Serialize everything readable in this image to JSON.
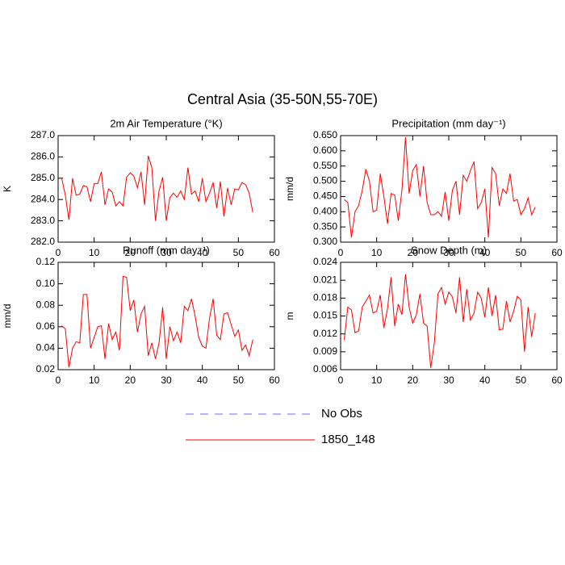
{
  "title": "Central Asia (35-50N,55-70E)",
  "reference": {
    "name": "No Obs",
    "color": "#6a6aff",
    "style": "dashed"
  },
  "chart_data": [
    {
      "type": "line",
      "title": "2m Air Temperature (°K)",
      "ylabel": "K",
      "x": [
        1,
        2,
        3,
        4,
        5,
        6,
        7,
        8,
        9,
        10,
        11,
        12,
        13,
        14,
        15,
        16,
        17,
        18,
        19,
        20,
        21,
        22,
        23,
        24,
        25,
        26,
        27,
        28,
        29,
        30,
        31,
        32,
        33,
        34,
        35,
        36,
        37,
        38,
        39,
        40,
        41,
        42,
        43,
        44,
        45,
        46,
        47,
        48,
        49,
        50,
        51,
        52,
        53,
        54
      ],
      "series": [
        {
          "name": "1850_148",
          "color": "#ff0000",
          "values": [
            285.0,
            284.2,
            283.05,
            285.0,
            284.2,
            284.25,
            284.65,
            284.6,
            283.9,
            284.75,
            284.75,
            285.3,
            283.75,
            284.5,
            284.35,
            283.7,
            283.9,
            283.7,
            285.05,
            285.25,
            285.1,
            284.55,
            285.3,
            283.75,
            286.05,
            285.5,
            283.0,
            284.4,
            285.05,
            283.0,
            284.1,
            284.3,
            284.1,
            284.4,
            284.0,
            285.5,
            284.25,
            284.4,
            283.9,
            285.0,
            283.9,
            284.3,
            284.8,
            283.6,
            284.85,
            283.2,
            284.55,
            283.75,
            284.5,
            284.45,
            284.8,
            284.7,
            284.3,
            283.4
          ]
        }
      ],
      "xlim": [
        0,
        60
      ],
      "xticks": [
        0,
        10,
        20,
        30,
        40,
        50,
        60
      ],
      "ylim": [
        282,
        287
      ],
      "yticks": [
        {
          "value": 282,
          "label": "282.0"
        },
        {
          "value": 283,
          "label": "283.0"
        },
        {
          "value": 284,
          "label": "284.0"
        },
        {
          "value": 285,
          "label": "285.0"
        },
        {
          "value": 286,
          "label": "286.0"
        },
        {
          "value": 287,
          "label": "287.0"
        }
      ]
    },
    {
      "type": "line",
      "title": "Precipitation (mm day⁻¹)",
      "ylabel": "mm/d",
      "x": [
        1,
        2,
        3,
        4,
        5,
        6,
        7,
        8,
        9,
        10,
        11,
        12,
        13,
        14,
        15,
        16,
        17,
        18,
        19,
        20,
        21,
        22,
        23,
        24,
        25,
        26,
        27,
        28,
        29,
        30,
        31,
        32,
        33,
        34,
        35,
        36,
        37,
        38,
        39,
        40,
        41,
        42,
        43,
        44,
        45,
        46,
        47,
        48,
        49,
        50,
        51,
        52,
        53,
        54
      ],
      "series": [
        {
          "name": "1850_148",
          "color": "#ff0000",
          "values": [
            0.44,
            0.43,
            0.315,
            0.4,
            0.42,
            0.47,
            0.54,
            0.5,
            0.4,
            0.405,
            0.525,
            0.45,
            0.36,
            0.46,
            0.455,
            0.37,
            0.47,
            0.645,
            0.46,
            0.535,
            0.555,
            0.45,
            0.55,
            0.43,
            0.39,
            0.39,
            0.4,
            0.385,
            0.465,
            0.37,
            0.47,
            0.5,
            0.39,
            0.52,
            0.5,
            0.535,
            0.565,
            0.41,
            0.43,
            0.475,
            0.315,
            0.545,
            0.525,
            0.42,
            0.475,
            0.46,
            0.525,
            0.435,
            0.44,
            0.39,
            0.41,
            0.445,
            0.39,
            0.415
          ]
        }
      ],
      "xlim": [
        0,
        60
      ],
      "xticks": [
        0,
        10,
        20,
        30,
        40,
        50,
        60
      ],
      "ylim": [
        0.3,
        0.65
      ],
      "yticks": [
        {
          "value": 0.3,
          "label": "0.300"
        },
        {
          "value": 0.35,
          "label": "0.350"
        },
        {
          "value": 0.4,
          "label": "0.400"
        },
        {
          "value": 0.45,
          "label": "0.450"
        },
        {
          "value": 0.5,
          "label": "0.500"
        },
        {
          "value": 0.55,
          "label": "0.550"
        },
        {
          "value": 0.6,
          "label": "0.600"
        },
        {
          "value": 0.65,
          "label": "0.650"
        }
      ]
    },
    {
      "type": "line",
      "title": "Runoff (mm day⁻¹)",
      "ylabel": "mm/d",
      "x": [
        1,
        2,
        3,
        4,
        5,
        6,
        7,
        8,
        9,
        10,
        11,
        12,
        13,
        14,
        15,
        16,
        17,
        18,
        19,
        20,
        21,
        22,
        23,
        24,
        25,
        26,
        27,
        28,
        29,
        30,
        31,
        32,
        33,
        34,
        35,
        36,
        37,
        38,
        39,
        40,
        41,
        42,
        43,
        44,
        45,
        46,
        47,
        48,
        49,
        50,
        51,
        52,
        53,
        54
      ],
      "series": [
        {
          "name": "1850_148",
          "color": "#ff0000",
          "values": [
            0.061,
            0.058,
            0.022,
            0.04,
            0.046,
            0.045,
            0.09,
            0.09,
            0.04,
            0.05,
            0.06,
            0.061,
            0.03,
            0.063,
            0.048,
            0.055,
            0.038,
            0.107,
            0.106,
            0.075,
            0.085,
            0.055,
            0.072,
            0.079,
            0.033,
            0.045,
            0.03,
            0.045,
            0.078,
            0.03,
            0.06,
            0.047,
            0.055,
            0.045,
            0.079,
            0.075,
            0.086,
            0.07,
            0.05,
            0.042,
            0.04,
            0.068,
            0.086,
            0.052,
            0.048,
            0.072,
            0.073,
            0.062,
            0.051,
            0.057,
            0.038,
            0.043,
            0.033,
            0.048
          ]
        }
      ],
      "xlim": [
        0,
        60
      ],
      "xticks": [
        0,
        10,
        20,
        30,
        40,
        50,
        60
      ],
      "ylim": [
        0.02,
        0.12
      ],
      "yticks": [
        0.02,
        0.04,
        0.06,
        0.08,
        {
          "value": 0.1,
          "label": "0.10"
        },
        0.12
      ]
    },
    {
      "type": "line",
      "title": "Snow Depth (m)",
      "ylabel": "m",
      "x": [
        1,
        2,
        3,
        4,
        5,
        6,
        7,
        8,
        9,
        10,
        11,
        12,
        13,
        14,
        15,
        16,
        17,
        18,
        19,
        20,
        21,
        22,
        23,
        24,
        25,
        26,
        27,
        28,
        29,
        30,
        31,
        32,
        33,
        34,
        35,
        36,
        37,
        38,
        39,
        40,
        41,
        42,
        43,
        44,
        45,
        46,
        47,
        48,
        49,
        50,
        51,
        52,
        53,
        54
      ],
      "series": [
        {
          "name": "1850_148",
          "color": "#ff0000",
          "values": [
            0.011,
            0.0165,
            0.016,
            0.0122,
            0.0125,
            0.0165,
            0.0175,
            0.0185,
            0.0155,
            0.0158,
            0.0185,
            0.013,
            0.0162,
            0.0215,
            0.0133,
            0.017,
            0.0152,
            0.022,
            0.0165,
            0.0138,
            0.0152,
            0.0187,
            0.0138,
            0.0133,
            0.0063,
            0.0105,
            0.0187,
            0.0198,
            0.017,
            0.019,
            0.0182,
            0.0155,
            0.0215,
            0.014,
            0.0195,
            0.0143,
            0.0155,
            0.019,
            0.018,
            0.0148,
            0.0198,
            0.015,
            0.0185,
            0.0127,
            0.0128,
            0.0175,
            0.014,
            0.0158,
            0.0183,
            0.0177,
            0.009,
            0.0165,
            0.0115,
            0.0155
          ]
        }
      ],
      "xlim": [
        0,
        60
      ],
      "xticks": [
        0,
        10,
        20,
        30,
        40,
        50,
        60
      ],
      "ylim": [
        0.006,
        0.024
      ],
      "yticks": [
        0.006,
        0.009,
        0.012,
        0.015,
        0.018,
        0.021,
        0.024
      ]
    }
  ]
}
